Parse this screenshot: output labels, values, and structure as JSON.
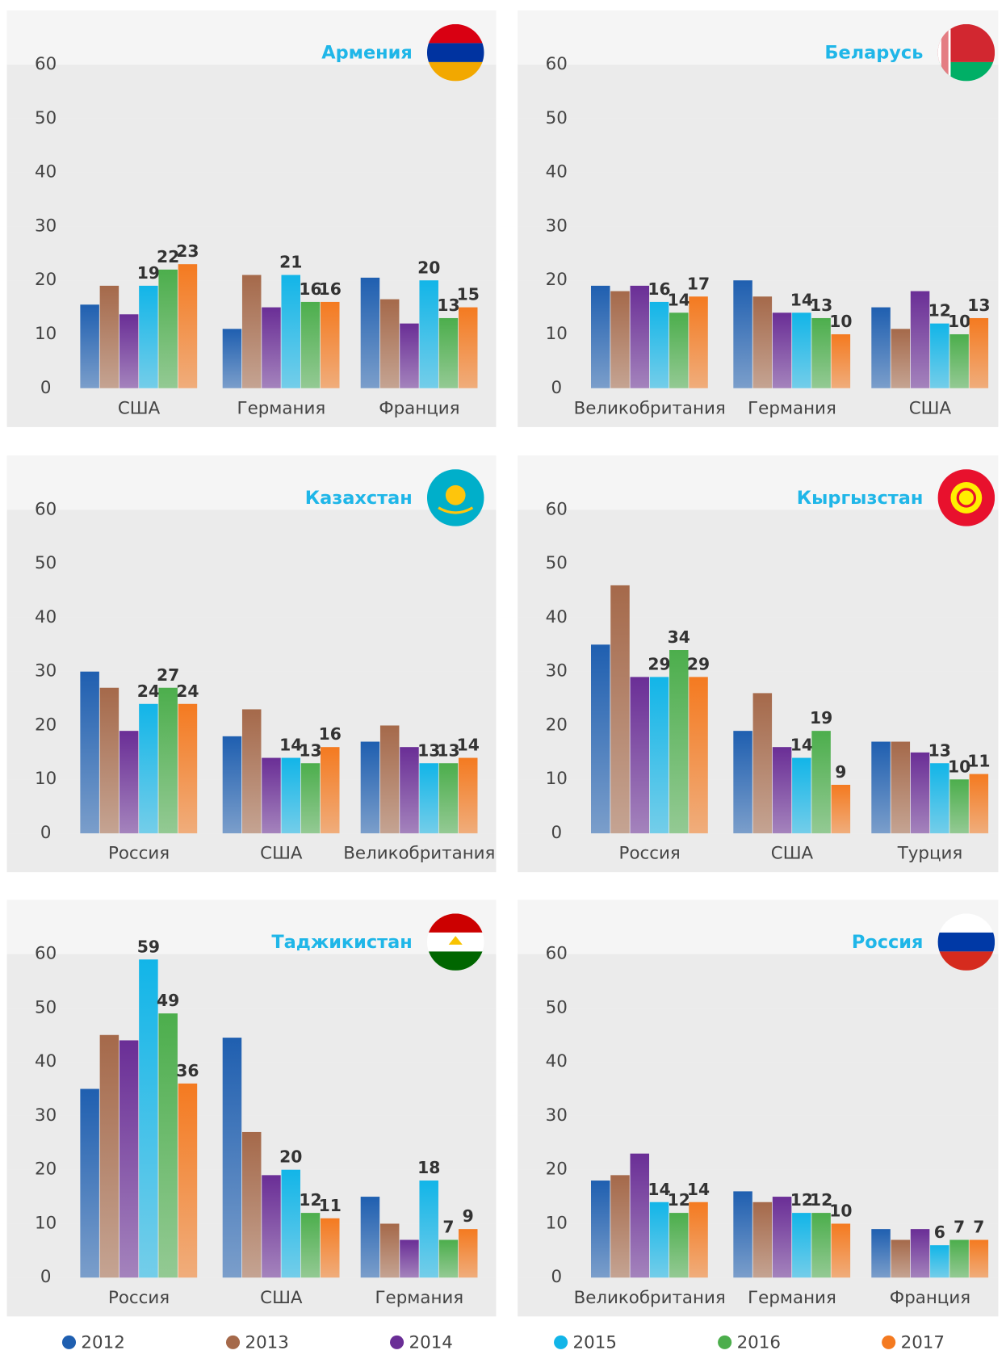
{
  "legend": [
    {
      "name": "2012",
      "color": "#1f5fb0",
      "show_labels": false
    },
    {
      "name": "2013",
      "color": "#a5694a",
      "show_labels": false
    },
    {
      "name": "2014",
      "color": "#6a2e96",
      "show_labels": false
    },
    {
      "name": "2015",
      "color": "#12b5e8",
      "show_labels": true
    },
    {
      "name": "2016",
      "color": "#4cae4c",
      "show_labels": true
    },
    {
      "name": "2017",
      "color": "#f47a20",
      "show_labels": true
    }
  ],
  "chart_data": [
    {
      "type": "bar",
      "title": "Армения",
      "flag": "armenia",
      "categories": [
        "США",
        "Германия",
        "Франция"
      ],
      "ylim": [
        0,
        60
      ],
      "yticks": [
        0,
        10,
        20,
        30,
        40,
        50,
        60
      ],
      "series": [
        {
          "values": [
            15.5,
            11,
            20.5
          ]
        },
        {
          "values": [
            19,
            21,
            16.5
          ]
        },
        {
          "values": [
            13.7,
            15,
            12
          ]
        },
        {
          "values": [
            19,
            21,
            20
          ]
        },
        {
          "values": [
            22,
            16,
            13
          ]
        },
        {
          "values": [
            23,
            16,
            15
          ]
        }
      ]
    },
    {
      "type": "bar",
      "title": "Беларусь",
      "flag": "belarus",
      "categories": [
        "Великобритания",
        "Германия",
        "США"
      ],
      "ylim": [
        0,
        60
      ],
      "yticks": [
        0,
        10,
        20,
        30,
        40,
        50,
        60
      ],
      "series": [
        {
          "values": [
            19,
            20,
            15
          ]
        },
        {
          "values": [
            18,
            17,
            11
          ]
        },
        {
          "values": [
            19,
            14,
            18
          ]
        },
        {
          "values": [
            16,
            14,
            12
          ]
        },
        {
          "values": [
            14,
            13,
            10
          ]
        },
        {
          "values": [
            17,
            10,
            13
          ]
        }
      ]
    },
    {
      "type": "bar",
      "title": "Казахстан",
      "flag": "kazakhstan",
      "categories": [
        "Россия",
        "США",
        "Великобритания"
      ],
      "ylim": [
        0,
        60
      ],
      "yticks": [
        0,
        10,
        20,
        30,
        40,
        50,
        60
      ],
      "series": [
        {
          "values": [
            30,
            18,
            17
          ]
        },
        {
          "values": [
            27,
            23,
            20
          ]
        },
        {
          "values": [
            19,
            14,
            16
          ]
        },
        {
          "values": [
            24,
            14,
            13
          ]
        },
        {
          "values": [
            27,
            13,
            13
          ]
        },
        {
          "values": [
            24,
            16,
            14
          ]
        }
      ]
    },
    {
      "type": "bar",
      "title": "Кыргызстан",
      "flag": "kyrgyzstan",
      "categories": [
        "Россия",
        "США",
        "Турция"
      ],
      "ylim": [
        0,
        60
      ],
      "yticks": [
        0,
        10,
        20,
        30,
        40,
        50,
        60
      ],
      "series": [
        {
          "values": [
            35,
            19,
            17
          ]
        },
        {
          "values": [
            46,
            26,
            17
          ]
        },
        {
          "values": [
            29,
            16,
            15
          ]
        },
        {
          "values": [
            29,
            14,
            13
          ]
        },
        {
          "values": [
            34,
            19,
            10
          ]
        },
        {
          "values": [
            29,
            9,
            11
          ]
        }
      ]
    },
    {
      "type": "bar",
      "title": "Таджикистан",
      "flag": "tajikistan",
      "categories": [
        "Россия",
        "США",
        "Германия"
      ],
      "ylim": [
        0,
        60
      ],
      "yticks": [
        0,
        10,
        20,
        30,
        40,
        50,
        60
      ],
      "series": [
        {
          "values": [
            35,
            44.5,
            15
          ]
        },
        {
          "values": [
            45,
            27,
            10
          ]
        },
        {
          "values": [
            44,
            19,
            7
          ]
        },
        {
          "values": [
            59,
            20,
            18
          ]
        },
        {
          "values": [
            49,
            12,
            7
          ]
        },
        {
          "values": [
            36,
            11,
            9
          ]
        }
      ]
    },
    {
      "type": "bar",
      "title": "Россия",
      "flag": "russia",
      "categories": [
        "Великобритания",
        "Германия",
        "Франция"
      ],
      "ylim": [
        0,
        60
      ],
      "yticks": [
        0,
        10,
        20,
        30,
        40,
        50,
        60
      ],
      "series": [
        {
          "values": [
            18,
            16,
            9
          ]
        },
        {
          "values": [
            19,
            14,
            7
          ]
        },
        {
          "values": [
            23,
            15,
            9
          ]
        },
        {
          "values": [
            14,
            12,
            6
          ]
        },
        {
          "values": [
            12,
            12,
            7
          ]
        },
        {
          "values": [
            14,
            10,
            7
          ]
        }
      ]
    }
  ]
}
